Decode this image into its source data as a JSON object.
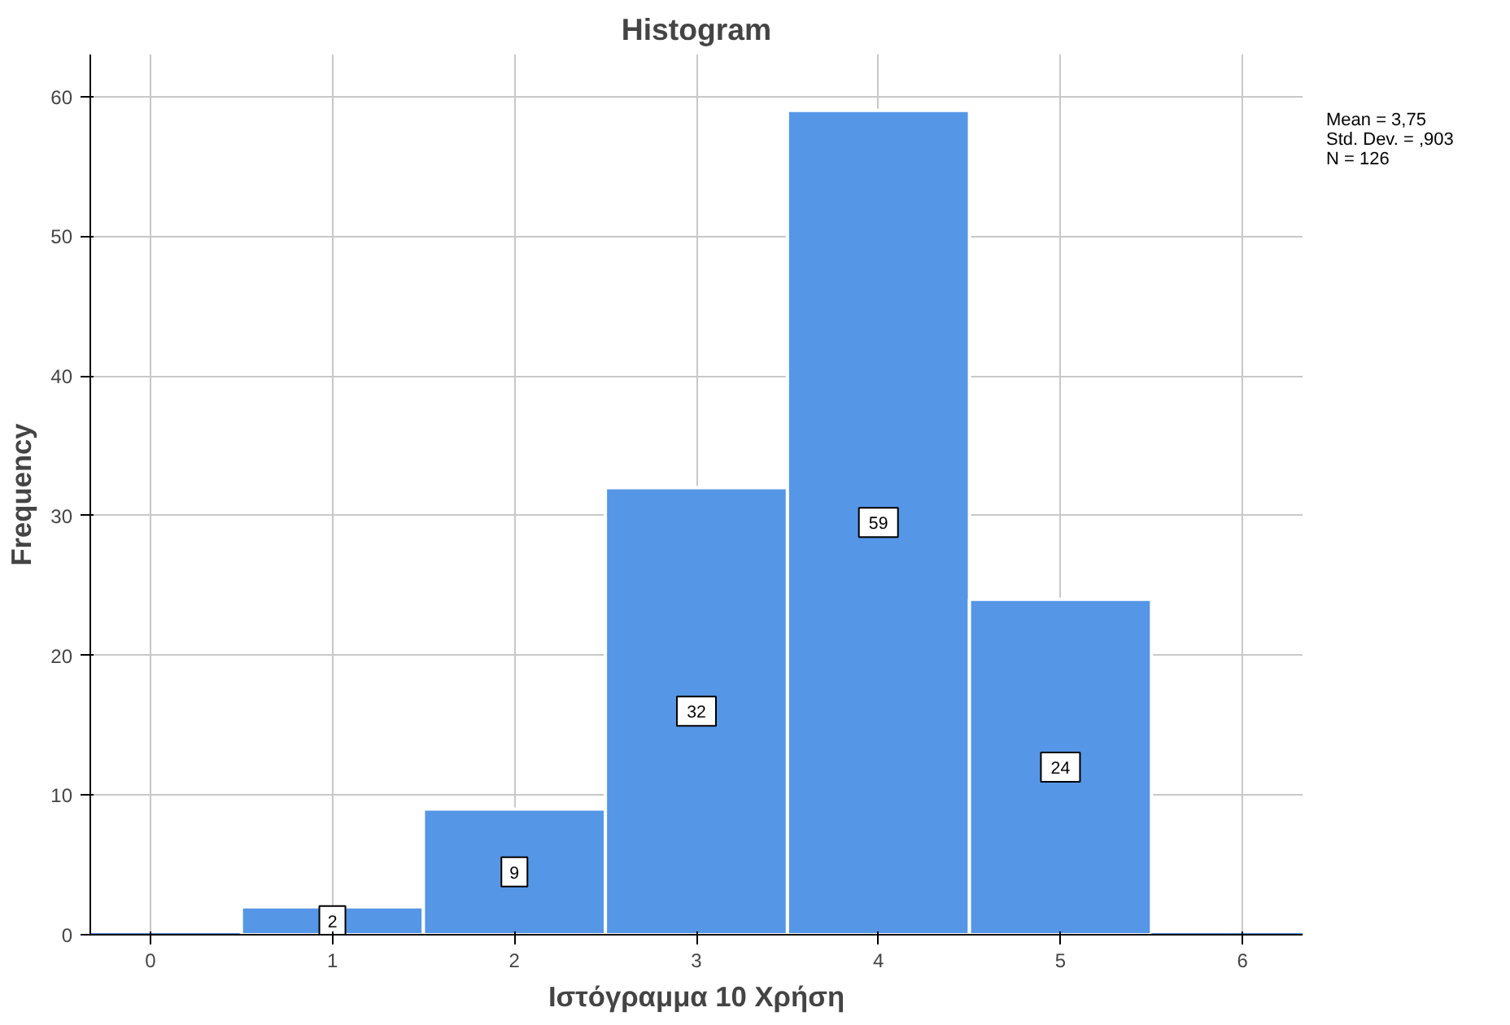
{
  "chart_data": {
    "type": "histogram",
    "title": "Histogram",
    "xlabel": "Ιστόγραμμα 10 Χρήση",
    "ylabel": "Frequency",
    "bins": [
      -0.5,
      0.5,
      1.5,
      2.5,
      3.5,
      4.5,
      5.5,
      6.5
    ],
    "values": [
      0,
      2,
      9,
      32,
      59,
      24,
      0
    ],
    "color": "#5596e6",
    "value_labels": [
      null,
      "2",
      "9",
      "32",
      "59",
      "24",
      null
    ],
    "xlim": [
      -0.33,
      6.33
    ],
    "xticks": [
      0,
      1,
      2,
      3,
      4,
      5,
      6
    ],
    "ylim": [
      0,
      63
    ],
    "yticks": [
      0,
      10,
      20,
      30,
      40,
      50,
      60
    ],
    "grid": true,
    "annotations": [
      "Mean = 3,75",
      "Std. Dev. = ,903",
      "N = 126"
    ]
  }
}
